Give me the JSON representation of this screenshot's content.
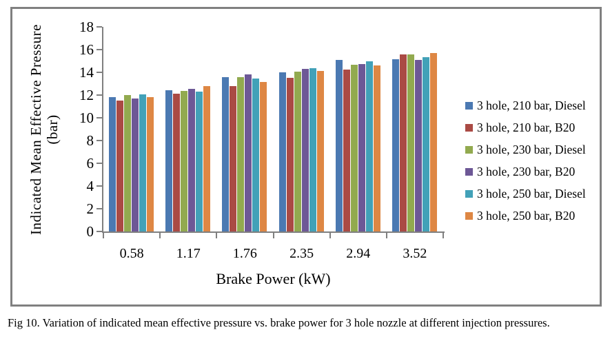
{
  "figure_caption": "Fig 10. Variation of indicated mean effective pressure vs. brake power for 3 hole nozzle at different injection pressures.",
  "chart_data": {
    "type": "bar",
    "title": "",
    "xlabel": "Brake Power (kW)",
    "ylabel": "Indicated Mean Effective Pressure",
    "ylabel_unit": "(bar)",
    "categories": [
      "0.58",
      "1.17",
      "1.76",
      "2.35",
      "2.94",
      "3.52"
    ],
    "series": [
      {
        "name": "3 hole, 210 bar, Diesel",
        "color": "#4B79B2",
        "values": [
          11.8,
          12.4,
          13.55,
          14.0,
          15.1,
          15.15
        ]
      },
      {
        "name": "3 hole, 210 bar, B20",
        "color": "#AA4A44",
        "values": [
          11.5,
          12.1,
          12.8,
          13.5,
          14.25,
          15.6
        ]
      },
      {
        "name": "3 hole, 230 bar, Diesel",
        "color": "#92AA4F",
        "values": [
          12.0,
          12.35,
          13.6,
          14.05,
          14.7,
          15.6
        ]
      },
      {
        "name": "3 hole, 230 bar, B20",
        "color": "#6D5896",
        "values": [
          11.7,
          12.55,
          13.8,
          14.3,
          14.75,
          15.1
        ]
      },
      {
        "name": "3 hole, 250 bar, Diesel",
        "color": "#42A1B8",
        "values": [
          12.05,
          12.3,
          13.45,
          14.35,
          15.0,
          15.35
        ]
      },
      {
        "name": "3 hole, 250 bar, B20",
        "color": "#DE8744",
        "values": [
          11.8,
          12.8,
          13.15,
          14.15,
          14.6,
          15.7
        ]
      }
    ],
    "ylim": [
      0,
      18
    ],
    "yticks": [
      0,
      2,
      4,
      6,
      8,
      10,
      12,
      14,
      16,
      18
    ],
    "grid": false,
    "legend_position": "right",
    "axis_color": "#7F7F7F",
    "frame_color": "#808080"
  }
}
